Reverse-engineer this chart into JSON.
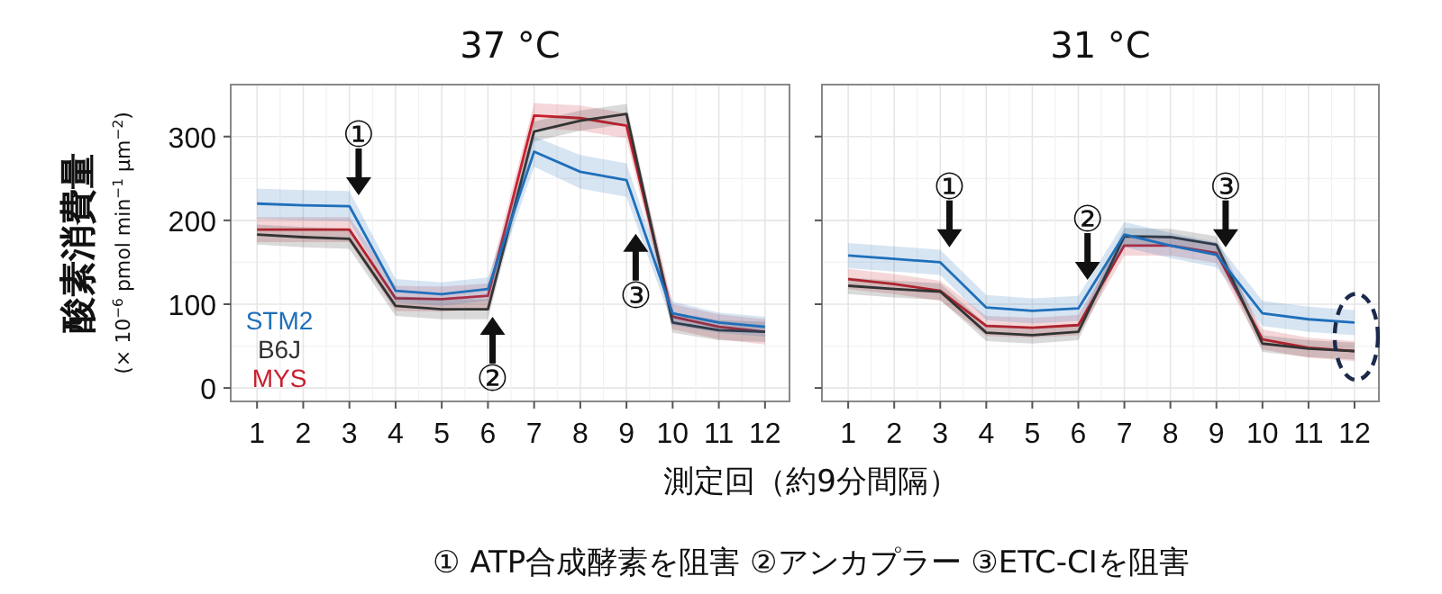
{
  "chart_data": [
    {
      "type": "line",
      "title": "37 °C",
      "xlabel": "測定回（約9分間隔）",
      "ylabel": "酸素消費量\n(× 10$^{−6}$ pmol min$^{−1}$ μm$^{−2}$)",
      "x": [
        1,
        2,
        3,
        4,
        5,
        6,
        7,
        8,
        9,
        10,
        11,
        12
      ],
      "xlim": [
        0.43,
        12.53
      ],
      "xticks": [
        1,
        2,
        3,
        4,
        5,
        6,
        7,
        8,
        9,
        10,
        11,
        12
      ],
      "ylim": [
        -16,
        362
      ],
      "yticks": [
        0,
        100,
        200,
        300
      ],
      "grid": true,
      "legend": "bottom left",
      "series": [
        {
          "name": "STM2",
          "color": "#1f6fba",
          "values": [
            220,
            218,
            217,
            116,
            112,
            118,
            282,
            258,
            248,
            89,
            78,
            73
          ],
          "lower": [
            202,
            200,
            199,
            102,
            98,
            104,
            264,
            238,
            228,
            75,
            66,
            61
          ],
          "upper": [
            238,
            236,
            235,
            130,
            126,
            132,
            300,
            278,
            268,
            103,
            90,
            85
          ]
        },
        {
          "name": "B6J",
          "color": "#333333",
          "values": [
            183,
            180,
            178,
            98,
            94,
            94,
            306,
            319,
            327,
            78,
            69,
            67
          ],
          "lower": [
            171,
            168,
            166,
            86,
            82,
            82,
            294,
            307,
            315,
            66,
            57,
            55
          ],
          "upper": [
            195,
            192,
            190,
            110,
            106,
            106,
            318,
            331,
            339,
            90,
            81,
            79
          ]
        },
        {
          "name": "MYS",
          "color": "#c8202e",
          "values": [
            189,
            189,
            189,
            107,
            106,
            110,
            325,
            322,
            313,
            85,
            73,
            67
          ],
          "lower": [
            174,
            174,
            174,
            92,
            91,
            95,
            310,
            307,
            298,
            70,
            58,
            52
          ],
          "upper": [
            204,
            204,
            204,
            122,
            121,
            125,
            340,
            337,
            328,
            100,
            88,
            82
          ]
        }
      ],
      "annotations": [
        {
          "text": "①",
          "x": 3.2,
          "y": 230
        },
        {
          "text": "②",
          "x": 6.1,
          "y": 85
        },
        {
          "text": "③",
          "x": 9.2,
          "y": 184
        },
        "① ATP合成酵素を阻害 ②アンカプラー ③ETC-CIを阻害"
      ]
    },
    {
      "type": "line",
      "title": "31 °C",
      "x": [
        1,
        2,
        3,
        4,
        5,
        6,
        7,
        8,
        9,
        10,
        11,
        12
      ],
      "xlim": [
        0.43,
        12.53
      ],
      "xticks": [
        1,
        2,
        3,
        4,
        5,
        6,
        7,
        8,
        9,
        10,
        11,
        12
      ],
      "ylim": [
        -16,
        362
      ],
      "yticks": [
        0,
        100,
        200,
        300
      ],
      "tick_labels": "x",
      "grid": true,
      "series": [
        {
          "color": "#1f6fba",
          "values": [
            158,
            154,
            150,
            96,
            92,
            95,
            183,
            170,
            159,
            89,
            82,
            78
          ],
          "lower": [
            143,
            139,
            135,
            81,
            77,
            80,
            168,
            155,
            144,
            74,
            67,
            63
          ],
          "upper": [
            173,
            169,
            165,
            111,
            107,
            110,
            198,
            185,
            174,
            104,
            97,
            93
          ]
        },
        {
          "color": "#333333",
          "values": [
            122,
            118,
            115,
            66,
            63,
            67,
            181,
            180,
            171,
            53,
            47,
            44
          ],
          "lower": [
            112,
            108,
            105,
            56,
            53,
            57,
            171,
            170,
            161,
            43,
            37,
            34
          ],
          "upper": [
            132,
            128,
            125,
            76,
            73,
            77,
            191,
            190,
            181,
            63,
            57,
            54
          ]
        },
        {
          "color": "#c8202e",
          "values": [
            130,
            124,
            116,
            74,
            72,
            75,
            170,
            170,
            161,
            58,
            48,
            44
          ],
          "lower": [
            118,
            112,
            104,
            62,
            60,
            63,
            158,
            158,
            149,
            46,
            36,
            32
          ],
          "upper": [
            142,
            136,
            128,
            86,
            84,
            87,
            182,
            182,
            173,
            70,
            60,
            56
          ]
        }
      ],
      "annotations": [
        {
          "text": "①",
          "x": 3.2,
          "y": 168
        },
        {
          "text": "②",
          "x": 6.2,
          "y": 129
        },
        {
          "text": "③",
          "x": 9.2,
          "y": 168
        }
      ]
    }
  ]
}
